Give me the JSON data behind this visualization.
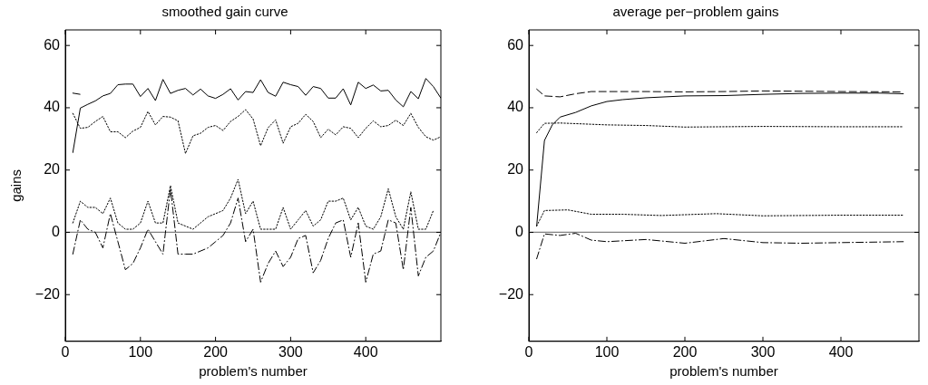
{
  "chart_data": [
    {
      "type": "line",
      "title": "smoothed gain curve",
      "xlabel": "problem's number",
      "ylabel": "gains",
      "xlim": [
        0,
        500
      ],
      "ylim": [
        -35,
        65
      ],
      "xticks": [
        0,
        100,
        200,
        300,
        400
      ],
      "yticks": [
        -20,
        0,
        20,
        40,
        60
      ],
      "marker": "none",
      "ref_lines": [
        {
          "axis": "y",
          "value": 0,
          "color": "#808080"
        }
      ],
      "series": [
        {
          "color": "#000000",
          "line_style": "solid",
          "x": [
            10,
            20,
            30,
            40,
            50,
            60,
            70,
            80,
            90,
            100,
            110,
            120,
            130,
            140,
            150,
            160,
            170,
            180,
            190,
            200,
            210,
            220,
            230,
            240,
            250,
            260,
            270,
            280,
            290,
            300,
            310,
            320,
            330,
            340,
            350,
            360,
            370,
            380,
            390,
            400,
            410,
            420,
            430,
            440,
            450,
            460,
            470,
            480,
            490,
            500
          ],
          "values": [
            25.6,
            39.9,
            41.1,
            42.2,
            43.8,
            44.6,
            47.4,
            47.6,
            47.6,
            43.6,
            46.2,
            42.3,
            49.1,
            44.6,
            45.6,
            46.2,
            44.1,
            46.0,
            43.8,
            43.0,
            44.3,
            46.1,
            42.5,
            45.2,
            44.9,
            49.0,
            44.9,
            43.7,
            48.2,
            47.4,
            46.8,
            44.0,
            46.8,
            46.2,
            43.1,
            43.1,
            46.1,
            40.9,
            48.2,
            46.2,
            47.3,
            45.4,
            45.6,
            42.5,
            40.3,
            45.2,
            42.9,
            49.4,
            46.8,
            43.1
          ]
        },
        {
          "color": "#000000",
          "line_style": "dashed",
          "x": [
            10,
            20
          ],
          "values": [
            44.7,
            44.3
          ]
        },
        {
          "color": "#000000",
          "line_style": "dotted",
          "x": [
            10,
            20,
            30,
            40,
            50,
            60,
            70,
            80,
            90,
            100,
            110,
            120,
            130,
            140,
            150,
            160,
            170,
            180,
            190,
            200,
            210,
            220,
            230,
            240,
            250,
            260,
            270,
            280,
            290,
            300,
            310,
            320,
            330,
            340,
            350,
            360,
            370,
            380,
            390,
            400,
            410,
            420,
            430,
            440,
            450,
            460,
            470,
            480,
            490,
            500
          ],
          "values": [
            38.2,
            33.4,
            33.7,
            35.6,
            37.2,
            32.3,
            32.3,
            30.4,
            32.5,
            33.7,
            38.8,
            34.5,
            37.2,
            37.0,
            35.8,
            25.3,
            31.0,
            31.8,
            33.7,
            34.3,
            32.7,
            35.6,
            37.2,
            39.4,
            36.4,
            27.8,
            33.6,
            36.1,
            28.6,
            33.9,
            35.0,
            37.9,
            35.6,
            30.4,
            33.1,
            31.3,
            33.9,
            33.4,
            30.4,
            33.4,
            35.8,
            33.9,
            34.3,
            36.0,
            34.3,
            38.2,
            33.7,
            30.7,
            29.6,
            30.7
          ]
        },
        {
          "color": "#000000",
          "line_style": "dotted",
          "x": [
            10,
            20,
            30,
            40,
            50,
            60,
            70,
            80,
            90,
            100,
            110,
            120,
            130,
            140,
            150,
            160,
            170,
            180,
            190,
            200,
            210,
            220,
            230,
            240,
            250,
            260,
            270,
            280,
            290,
            300,
            310,
            320,
            330,
            340,
            350,
            360,
            370,
            380,
            390,
            400,
            410,
            420,
            430,
            440,
            450,
            460,
            470,
            480,
            490
          ],
          "values": [
            3,
            10,
            8,
            8,
            6,
            11,
            3,
            1,
            1,
            3,
            10,
            3,
            3,
            15,
            3,
            2,
            1,
            3,
            5,
            6,
            7,
            11,
            17,
            6,
            10,
            1,
            1,
            1,
            8,
            1,
            4,
            7,
            2,
            4,
            10,
            10,
            11,
            4,
            8,
            2,
            1,
            5,
            14,
            5,
            1,
            13,
            1,
            1,
            7
          ]
        },
        {
          "color": "#000000",
          "line_style": "dashdot",
          "x": [
            10,
            20,
            30,
            40,
            50,
            60,
            70,
            80,
            90,
            100,
            110,
            120,
            130,
            140,
            150,
            160,
            170,
            180,
            190,
            200,
            210,
            220,
            230,
            240,
            250,
            260,
            270,
            280,
            290,
            300,
            310,
            320,
            330,
            340,
            350,
            360,
            370,
            380,
            390,
            400,
            410,
            420,
            430,
            440,
            450,
            460,
            470,
            480,
            490,
            500
          ],
          "values": [
            -7,
            4,
            1,
            0,
            -5,
            6,
            -3,
            -12,
            -10,
            -5,
            1,
            -3,
            -7,
            14,
            -7,
            -7,
            -7,
            -6,
            -5,
            -3,
            -1,
            3,
            11,
            -3,
            1,
            -16,
            -10,
            -6,
            -11,
            -8,
            -2,
            -1,
            -13,
            -9,
            -2,
            3,
            4,
            -8,
            3,
            -16,
            -7,
            -6,
            4,
            3,
            -12,
            8,
            -14,
            -8,
            -6,
            0
          ]
        }
      ]
    },
    {
      "type": "line",
      "title": "average per−problem gains",
      "xlabel": "problem's number",
      "xlim": [
        0,
        500
      ],
      "ylim": [
        -35,
        65
      ],
      "xticks": [
        0,
        100,
        200,
        300,
        400
      ],
      "yticks": [
        -20,
        0,
        20,
        40,
        60
      ],
      "marker": "none",
      "ref_lines": [
        {
          "axis": "y",
          "value": 0,
          "color": "#808080"
        }
      ],
      "series": [
        {
          "color": "#000000",
          "line_style": "solid",
          "x": [
            10,
            20,
            30,
            40,
            60,
            80,
            100,
            120,
            150,
            200,
            250,
            300,
            350,
            400,
            450,
            480
          ],
          "values": [
            2,
            29.5,
            34.5,
            37,
            38.5,
            40.6,
            42,
            42.6,
            43.2,
            43.8,
            43.9,
            44.3,
            44.6,
            44.7,
            44.7,
            44.5
          ]
        },
        {
          "color": "#000000",
          "line_style": "dashed",
          "x": [
            10,
            20,
            40,
            60,
            80,
            100,
            150,
            200,
            250,
            300,
            350,
            400,
            480
          ],
          "values": [
            46,
            43.8,
            43.5,
            44.5,
            45.2,
            45.2,
            45.2,
            45.1,
            45.2,
            45.4,
            45.3,
            45.2,
            45.1
          ]
        },
        {
          "color": "#000000",
          "line_style": "dotted",
          "x": [
            10,
            20,
            40,
            100,
            150,
            200,
            300,
            400,
            480
          ],
          "values": [
            32,
            35,
            35.1,
            34.5,
            34.3,
            33.8,
            34,
            33.9,
            33.9
          ]
        },
        {
          "color": "#000000",
          "line_style": "dotted",
          "x": [
            10,
            20,
            50,
            80,
            120,
            170,
            240,
            300,
            400,
            480
          ],
          "values": [
            2,
            7,
            7.2,
            5.8,
            5.8,
            5.4,
            6,
            5.3,
            5.5,
            5.5
          ]
        },
        {
          "color": "#000000",
          "line_style": "dashdot",
          "x": [
            10,
            20,
            40,
            60,
            80,
            100,
            150,
            200,
            250,
            300,
            350,
            400,
            480
          ],
          "values": [
            -8.5,
            -0.5,
            -1,
            -0.3,
            -2.5,
            -3,
            -2.3,
            -3.5,
            -2,
            -3.3,
            -3.5,
            -3.3,
            -3
          ]
        }
      ]
    }
  ]
}
